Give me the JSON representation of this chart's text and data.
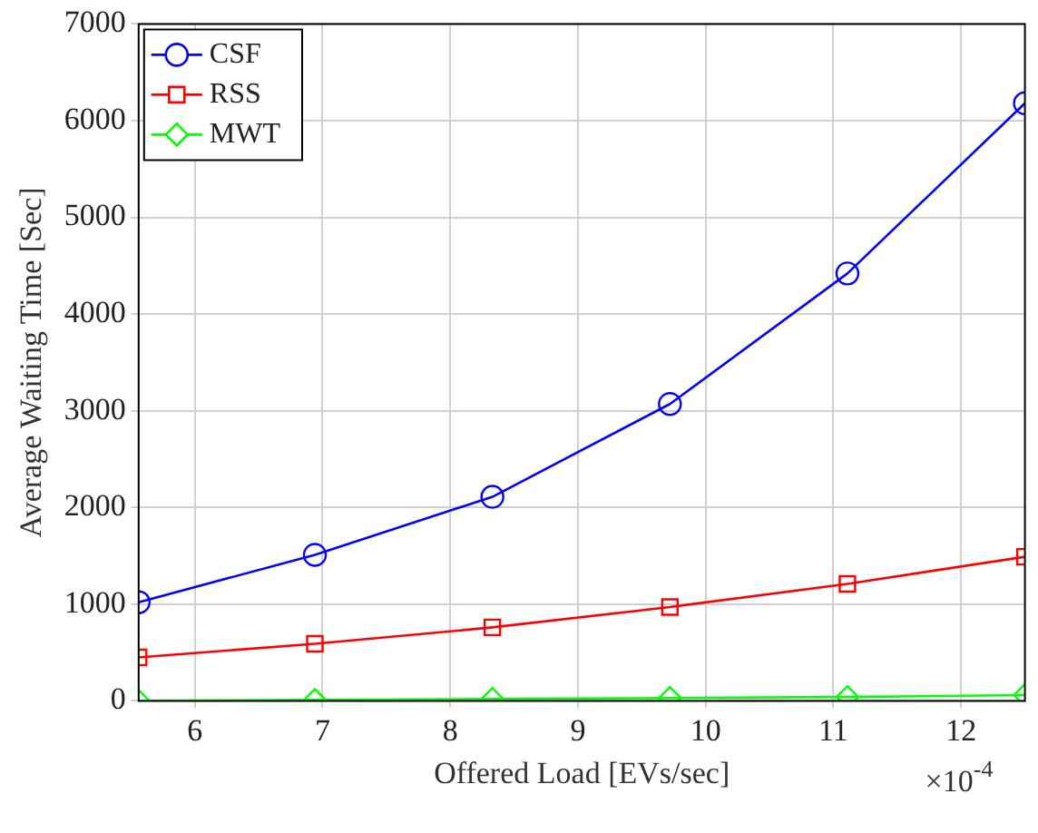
{
  "chart_data": {
    "type": "line",
    "xlabel": "Offered Load [EVs/sec]",
    "ylabel": "Average Waiting Time [Sec]",
    "x": [
      5.56,
      6.94,
      8.33,
      9.72,
      11.11,
      12.5
    ],
    "series": [
      {
        "name": "CSF",
        "color": "#0000ff",
        "marker": "circle",
        "values": [
          1020,
          1510,
          2110,
          3070,
          4420,
          6180
        ]
      },
      {
        "name": "RSS",
        "color": "#ff0000",
        "marker": "square",
        "values": [
          450,
          590,
          760,
          970,
          1210,
          1490
        ]
      },
      {
        "name": "MWT",
        "color": "#00ff00",
        "marker": "diamond",
        "values": [
          0,
          10,
          20,
          30,
          40,
          60
        ]
      }
    ],
    "xlim": [
      5.56,
      12.5
    ],
    "xticks": [
      6,
      7,
      8,
      9,
      10,
      11,
      12
    ],
    "ylim": [
      0,
      7000
    ],
    "yticks": [
      0,
      1000,
      2000,
      3000,
      4000,
      5000,
      6000,
      7000
    ],
    "grid": true,
    "legend": "top left",
    "line_style": "solid",
    "annotations": [
      "×10$^{-4}$"
    ]
  }
}
